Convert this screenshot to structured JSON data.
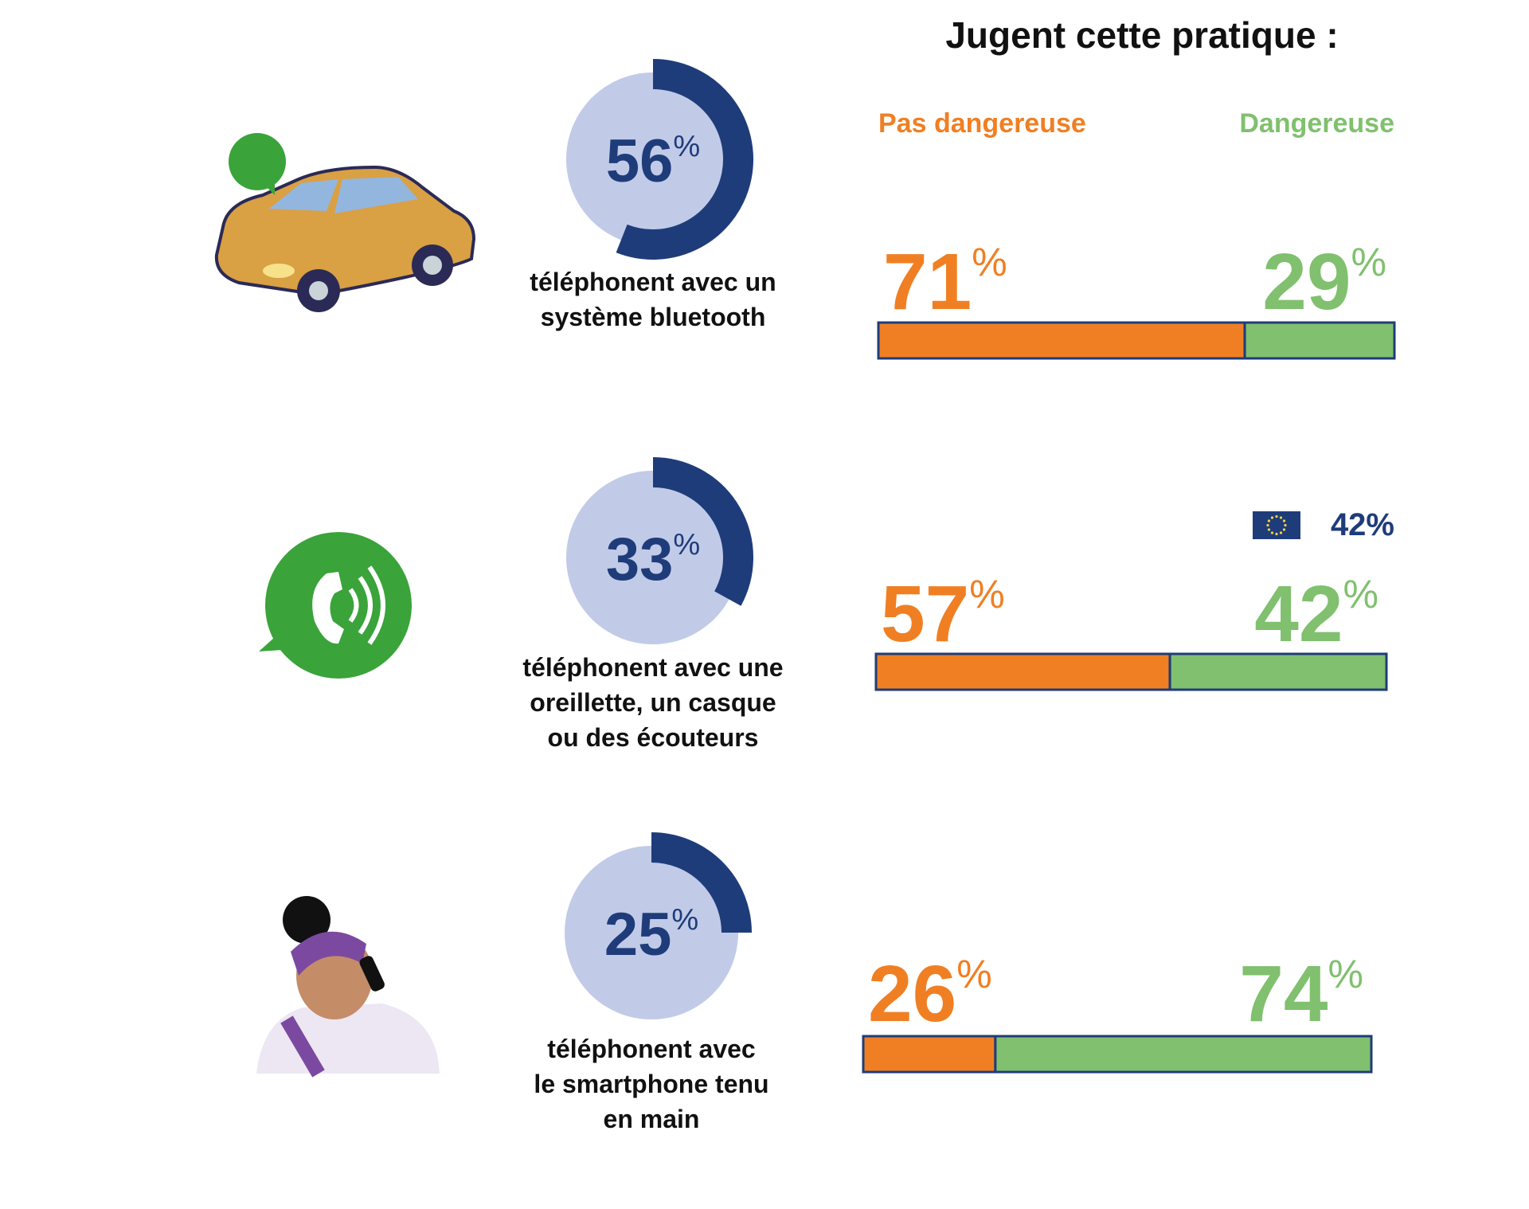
{
  "title": "Jugent cette pratique :",
  "legend": {
    "not_dangerous": "Pas dangereuse",
    "dangerous": "Dangereuse"
  },
  "colors": {
    "not_dangerous": "#f07f23",
    "dangerous": "#80c06e",
    "donut": "#1f3c7a",
    "donut_bg": "#c1cbe8"
  },
  "rows": [
    {
      "donut_value": 56,
      "donut_label": "56%",
      "description": [
        "téléphonent avec un",
        "système bluetooth"
      ],
      "not_dangerous": 71,
      "not_dangerous_label": "71%",
      "dangerous": 29,
      "dangerous_label": "29%"
    },
    {
      "donut_value": 33,
      "donut_label": "33%",
      "description": [
        "téléphonent avec une",
        "oreillette, un casque",
        "ou des écouteurs"
      ],
      "not_dangerous": 57,
      "not_dangerous_label": "57%",
      "dangerous": 42,
      "dangerous_label": "42%",
      "eu_annotation": "42%"
    },
    {
      "donut_value": 25,
      "donut_label": "25%",
      "description": [
        "téléphonent avec",
        "le smartphone tenu",
        "en main"
      ],
      "not_dangerous": 26,
      "not_dangerous_label": "26%",
      "dangerous": 74,
      "dangerous_label": "74%"
    }
  ]
}
